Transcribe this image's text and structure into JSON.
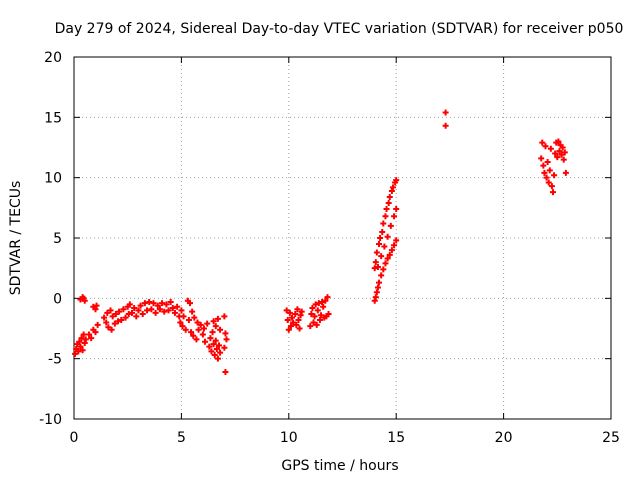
{
  "chart_data": {
    "type": "scatter",
    "title": "Day 279 of 2024, Sidereal Day-to-day VTEC variation (SDTVAR) for receiver p050",
    "xlabel": "GPS time / hours",
    "ylabel": "SDTVAR / TECUs",
    "xlim": [
      0,
      25
    ],
    "ylim": [
      -10,
      20
    ],
    "xticks": [
      0,
      5,
      10,
      15,
      20,
      25
    ],
    "yticks": [
      -10,
      -5,
      0,
      5,
      10,
      15,
      20
    ],
    "xtick_labels": [
      "0",
      "5",
      "10",
      "15",
      "20",
      "25"
    ],
    "ytick_labels": [
      "-10",
      "-5",
      "0",
      "5",
      "10",
      "15",
      "20"
    ],
    "grid": true,
    "marker": "plus",
    "color": "#ff0000",
    "series": [
      {
        "name": "SDTVAR",
        "points": [
          [
            0.05,
            -4.6
          ],
          [
            0.1,
            -4.2
          ],
          [
            0.15,
            -3.8
          ],
          [
            0.2,
            -4.4
          ],
          [
            0.25,
            -3.6
          ],
          [
            0.3,
            -4.0
          ],
          [
            0.35,
            -3.3
          ],
          [
            0.4,
            -4.3
          ],
          [
            0.45,
            -3.0
          ],
          [
            0.5,
            -3.7
          ],
          [
            0.55,
            -3.4
          ],
          [
            0.3,
            -0.1
          ],
          [
            0.4,
            0.1
          ],
          [
            0.5,
            -0.2
          ],
          [
            0.45,
            0.0
          ],
          [
            0.7,
            -3.0
          ],
          [
            0.8,
            -3.3
          ],
          [
            0.9,
            -2.6
          ],
          [
            1.0,
            -2.8
          ],
          [
            0.9,
            -0.7
          ],
          [
            1.0,
            -0.9
          ],
          [
            1.05,
            -0.6
          ],
          [
            1.1,
            -2.2
          ],
          [
            1.4,
            -1.6
          ],
          [
            1.5,
            -2.0
          ],
          [
            1.55,
            -1.2
          ],
          [
            1.6,
            -2.4
          ],
          [
            1.7,
            -1.0
          ],
          [
            1.75,
            -2.6
          ],
          [
            1.8,
            -1.5
          ],
          [
            1.9,
            -2.1
          ],
          [
            1.95,
            -1.3
          ],
          [
            2.05,
            -1.9
          ],
          [
            2.1,
            -1.1
          ],
          [
            2.2,
            -1.8
          ],
          [
            2.3,
            -0.9
          ],
          [
            2.4,
            -1.6
          ],
          [
            2.5,
            -0.7
          ],
          [
            2.55,
            -1.3
          ],
          [
            2.6,
            -0.5
          ],
          [
            2.7,
            -1.2
          ],
          [
            2.8,
            -0.8
          ],
          [
            2.9,
            -1.5
          ],
          [
            3.0,
            -1.0
          ],
          [
            3.1,
            -0.6
          ],
          [
            3.2,
            -1.3
          ],
          [
            3.3,
            -0.4
          ],
          [
            3.4,
            -1.0
          ],
          [
            3.5,
            -0.3
          ],
          [
            3.6,
            -0.9
          ],
          [
            3.7,
            -0.4
          ],
          [
            3.8,
            -1.2
          ],
          [
            3.9,
            -0.6
          ],
          [
            4.0,
            -0.9
          ],
          [
            4.1,
            -0.4
          ],
          [
            4.2,
            -1.1
          ],
          [
            4.3,
            -0.5
          ],
          [
            4.4,
            -1.0
          ],
          [
            4.5,
            -0.3
          ],
          [
            4.6,
            -0.8
          ],
          [
            4.7,
            -1.2
          ],
          [
            4.8,
            -0.7
          ],
          [
            4.9,
            -1.5
          ],
          [
            4.95,
            -2.0
          ],
          [
            5.0,
            -1.0
          ],
          [
            5.05,
            -2.3
          ],
          [
            5.1,
            -1.5
          ],
          [
            5.2,
            -2.6
          ],
          [
            5.3,
            -0.2
          ],
          [
            5.35,
            -1.8
          ],
          [
            5.4,
            -0.4
          ],
          [
            5.45,
            -2.8
          ],
          [
            5.5,
            -1.1
          ],
          [
            5.55,
            -3.1
          ],
          [
            5.6,
            -1.6
          ],
          [
            5.7,
            -3.4
          ],
          [
            5.75,
            -2.0
          ],
          [
            5.8,
            -2.6
          ],
          [
            5.9,
            -2.2
          ],
          [
            6.0,
            -3.0
          ],
          [
            6.05,
            -2.5
          ],
          [
            6.1,
            -3.6
          ],
          [
            6.2,
            -2.1
          ],
          [
            6.3,
            -4.0
          ],
          [
            6.35,
            -3.3
          ],
          [
            6.4,
            -4.4
          ],
          [
            6.45,
            -2.8
          ],
          [
            6.5,
            -3.8
          ],
          [
            6.55,
            -4.7
          ],
          [
            6.6,
            -3.5
          ],
          [
            6.65,
            -4.2
          ],
          [
            6.7,
            -5.0
          ],
          [
            6.75,
            -3.9
          ],
          [
            6.8,
            -4.5
          ],
          [
            6.5,
            -1.9
          ],
          [
            6.6,
            -2.3
          ],
          [
            6.7,
            -1.7
          ],
          [
            6.8,
            -2.6
          ],
          [
            7.0,
            -1.5
          ],
          [
            7.05,
            -2.9
          ],
          [
            7.0,
            -4.1
          ],
          [
            7.1,
            -3.4
          ],
          [
            7.05,
            -6.1
          ],
          [
            9.9,
            -1.0
          ],
          [
            9.95,
            -1.8
          ],
          [
            10.0,
            -2.6
          ],
          [
            10.05,
            -1.2
          ],
          [
            10.1,
            -2.3
          ],
          [
            10.15,
            -1.6
          ],
          [
            10.2,
            -2.0
          ],
          [
            10.3,
            -1.3
          ],
          [
            10.35,
            -2.2
          ],
          [
            10.4,
            -0.9
          ],
          [
            10.45,
            -1.8
          ],
          [
            10.5,
            -2.5
          ],
          [
            10.55,
            -1.4
          ],
          [
            10.6,
            -1.1
          ],
          [
            11.0,
            -2.3
          ],
          [
            11.05,
            -1.3
          ],
          [
            11.1,
            -0.8
          ],
          [
            11.15,
            -2.0
          ],
          [
            11.2,
            -1.5
          ],
          [
            11.25,
            -0.5
          ],
          [
            11.3,
            -2.2
          ],
          [
            11.35,
            -1.0
          ],
          [
            11.4,
            -0.4
          ],
          [
            11.45,
            -1.8
          ],
          [
            11.5,
            -1.4
          ],
          [
            11.55,
            -0.3
          ],
          [
            11.6,
            -0.7
          ],
          [
            11.65,
            -1.6
          ],
          [
            11.7,
            -0.2
          ],
          [
            11.75,
            -1.5
          ],
          [
            11.8,
            0.1
          ],
          [
            11.85,
            -1.3
          ],
          [
            14.0,
            2.5
          ],
          [
            14.05,
            3.0
          ],
          [
            14.1,
            3.8
          ],
          [
            14.15,
            2.6
          ],
          [
            14.2,
            4.5
          ],
          [
            14.25,
            5.0
          ],
          [
            14.3,
            3.5
          ],
          [
            14.35,
            5.5
          ],
          [
            14.4,
            6.2
          ],
          [
            14.45,
            4.3
          ],
          [
            14.5,
            6.8
          ],
          [
            14.55,
            7.4
          ],
          [
            14.6,
            5.1
          ],
          [
            14.65,
            7.9
          ],
          [
            14.7,
            8.4
          ],
          [
            14.75,
            6.0
          ],
          [
            14.8,
            8.9
          ],
          [
            14.85,
            9.2
          ],
          [
            14.9,
            6.8
          ],
          [
            14.95,
            9.6
          ],
          [
            15.0,
            9.8
          ],
          [
            15.0,
            7.4
          ],
          [
            14.0,
            -0.2
          ],
          [
            14.05,
            0.1
          ],
          [
            14.1,
            0.5
          ],
          [
            14.15,
            0.9
          ],
          [
            14.2,
            1.3
          ],
          [
            14.3,
            1.9
          ],
          [
            14.4,
            2.4
          ],
          [
            14.5,
            2.9
          ],
          [
            14.6,
            3.3
          ],
          [
            14.7,
            3.6
          ],
          [
            14.8,
            4.0
          ],
          [
            14.9,
            4.4
          ],
          [
            15.0,
            4.8
          ],
          [
            17.3,
            15.4
          ],
          [
            17.3,
            14.3
          ],
          [
            21.75,
            11.6
          ],
          [
            21.8,
            12.9
          ],
          [
            21.85,
            11.0
          ],
          [
            21.9,
            10.4
          ],
          [
            21.95,
            12.6
          ],
          [
            22.0,
            10.0
          ],
          [
            22.05,
            11.3
          ],
          [
            22.1,
            9.6
          ],
          [
            22.15,
            10.6
          ],
          [
            22.2,
            12.4
          ],
          [
            22.25,
            9.3
          ],
          [
            22.3,
            8.8
          ],
          [
            22.35,
            10.2
          ],
          [
            22.4,
            12.0
          ],
          [
            22.45,
            12.9
          ],
          [
            22.5,
            11.7
          ],
          [
            22.55,
            13.0
          ],
          [
            22.6,
            12.2
          ],
          [
            22.65,
            12.7
          ],
          [
            22.7,
            11.9
          ],
          [
            22.75,
            12.5
          ],
          [
            22.8,
            11.5
          ],
          [
            22.85,
            12.1
          ],
          [
            22.9,
            10.4
          ]
        ]
      }
    ]
  }
}
